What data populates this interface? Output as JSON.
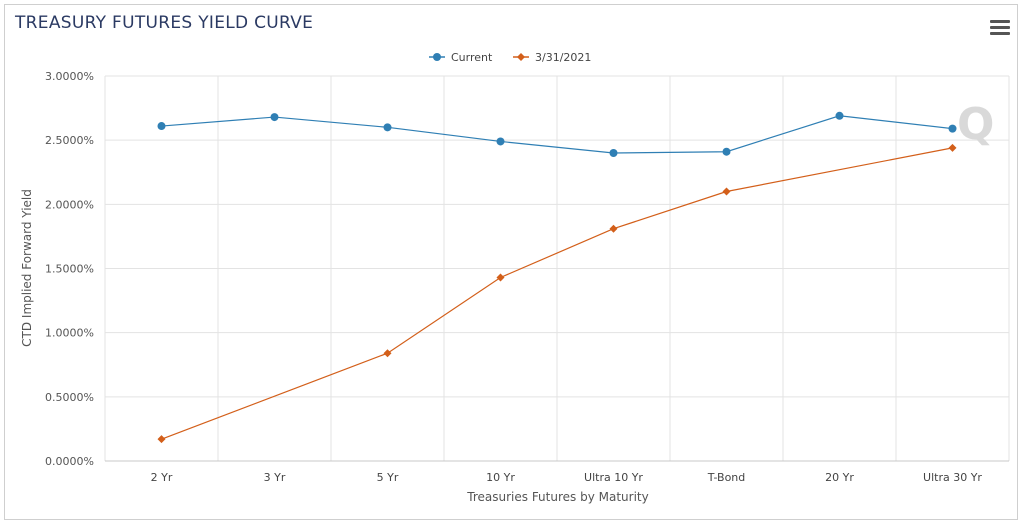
{
  "chart_data": {
    "type": "line",
    "title": "TREASURY FUTURES YIELD CURVE",
    "xlabel": "Treasuries Futures by Maturity",
    "ylabel": "CTD Implied Forward Yield",
    "categories": [
      "2 Yr",
      "3 Yr",
      "5 Yr",
      "10 Yr",
      "Ultra 10 Yr",
      "T-Bond",
      "20 Yr",
      "Ultra 30 Yr"
    ],
    "ylim": [
      0,
      3
    ],
    "yticks": [
      0,
      0.5,
      1,
      1.5,
      2,
      2.5,
      3
    ],
    "ytick_labels": [
      "0.0000%",
      "0.5000%",
      "1.0000%",
      "1.5000%",
      "2.0000%",
      "2.5000%",
      "3.0000%"
    ],
    "grid": true,
    "legend_position": "top-center",
    "series": [
      {
        "name": "Current",
        "color": "#2f7fb4",
        "marker": "circle",
        "values": [
          2.61,
          2.68,
          2.6,
          2.49,
          2.4,
          2.41,
          2.69,
          2.59
        ]
      },
      {
        "name": "3/31/2021",
        "color": "#d35f1a",
        "marker": "diamond",
        "values": [
          0.17,
          null,
          0.84,
          1.43,
          1.81,
          2.1,
          null,
          2.44
        ]
      }
    ]
  },
  "menu_icon": "hamburger-menu-icon",
  "watermark_icon": "q-logo-icon"
}
